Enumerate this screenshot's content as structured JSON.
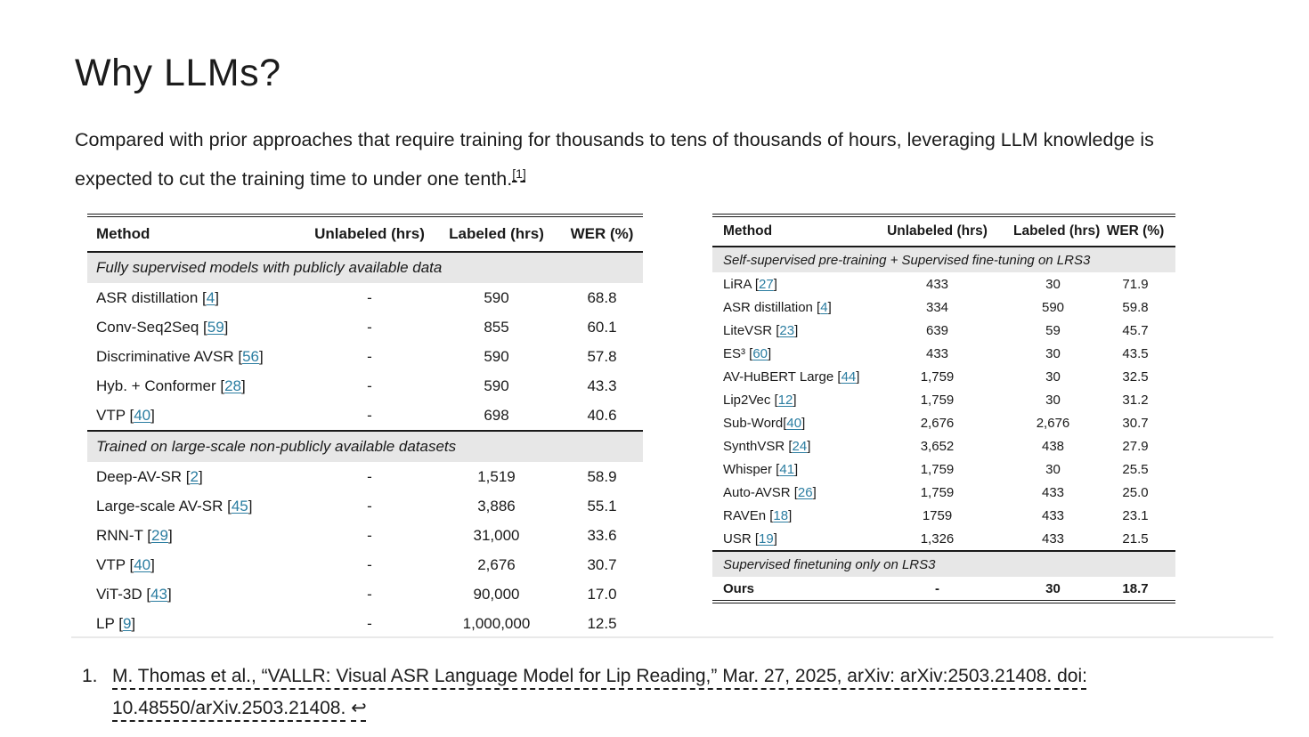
{
  "page": {
    "title": "Why LLMs?",
    "paragraph": "Compared with prior approaches that require training for thousands to tens of thousands of hours, leveraging LLM knowledge is expected to cut the training time to under one tenth.",
    "footnote_marker": "[1]"
  },
  "left_table": {
    "headers": [
      "Method",
      "Unlabeled (hrs)",
      "Labeled (hrs)",
      "WER (%)"
    ],
    "rows": [
      {
        "type": "section",
        "label": "Fully supervised models with publicly available data"
      },
      {
        "type": "data",
        "name": "ASR distillation",
        "ref": "4",
        "unlabeled": "-",
        "labeled": "590",
        "wer": "68.8"
      },
      {
        "type": "data",
        "name": "Conv-Seq2Seq",
        "ref": "59",
        "unlabeled": "-",
        "labeled": "855",
        "wer": "60.1"
      },
      {
        "type": "data",
        "name": "Discriminative AVSR",
        "ref": "56",
        "unlabeled": "-",
        "labeled": "590",
        "wer": "57.8"
      },
      {
        "type": "data",
        "name": "Hyb. + Conformer",
        "ref": "28",
        "unlabeled": "-",
        "labeled": "590",
        "wer": "43.3"
      },
      {
        "type": "data",
        "name": "VTP",
        "ref": "40",
        "unlabeled": "-",
        "labeled": "698",
        "wer": "40.6"
      },
      {
        "type": "section",
        "label": "Trained on large-scale non-publicly available datasets"
      },
      {
        "type": "data",
        "name": "Deep-AV-SR",
        "ref": "2",
        "unlabeled": "-",
        "labeled": "1,519",
        "wer": "58.9"
      },
      {
        "type": "data",
        "name": "Large-scale AV-SR",
        "ref": "45",
        "unlabeled": "-",
        "labeled": "3,886",
        "wer": "55.1"
      },
      {
        "type": "data",
        "name": "RNN-T",
        "ref": "29",
        "unlabeled": "-",
        "labeled": "31,000",
        "wer": "33.6"
      },
      {
        "type": "data",
        "name": "VTP",
        "ref": "40",
        "unlabeled": "-",
        "labeled": "2,676",
        "wer": "30.7"
      },
      {
        "type": "data",
        "name": "ViT-3D",
        "ref": "43",
        "unlabeled": "-",
        "labeled": "90,000",
        "wer": "17.0"
      },
      {
        "type": "data",
        "name": "LP",
        "ref": "9",
        "unlabeled": "-",
        "labeled": "1,000,000",
        "wer": "12.5"
      }
    ]
  },
  "right_table": {
    "headers": [
      "Method",
      "Unlabeled (hrs)",
      "Labeled (hrs)",
      "WER (%)"
    ],
    "rows": [
      {
        "type": "section",
        "label": "Self-supervised pre-training + Supervised fine-tuning on LRS3"
      },
      {
        "type": "data",
        "name": "LiRA",
        "ref": "27",
        "unlabeled": "433",
        "labeled": "30",
        "wer": "71.9"
      },
      {
        "type": "data",
        "name": "ASR distillation",
        "ref": "4",
        "unlabeled": "334",
        "labeled": "590",
        "wer": "59.8"
      },
      {
        "type": "data",
        "name": "LiteVSR",
        "ref": "23",
        "unlabeled": "639",
        "labeled": "59",
        "wer": "45.7"
      },
      {
        "type": "data",
        "name": "ES³",
        "ref": "60",
        "unlabeled": "433",
        "labeled": "30",
        "wer": "43.5"
      },
      {
        "type": "data",
        "name": "AV-HuBERT Large",
        "ref": "44",
        "unlabeled": "1,759",
        "labeled": "30",
        "wer": "32.5"
      },
      {
        "type": "data",
        "name": "Lip2Vec",
        "ref": "12",
        "unlabeled": "1,759",
        "labeled": "30",
        "wer": "31.2"
      },
      {
        "type": "data",
        "name": "Sub-Word",
        "ref": "40",
        "space": false,
        "unlabeled": "2,676",
        "labeled": "2,676",
        "wer": "30.7"
      },
      {
        "type": "data",
        "name": "SynthVSR",
        "ref": "24",
        "unlabeled": "3,652",
        "labeled": "438",
        "wer": "27.9"
      },
      {
        "type": "data",
        "name": "Whisper",
        "ref": "41",
        "unlabeled": "1,759",
        "labeled": "30",
        "wer": "25.5"
      },
      {
        "type": "data",
        "name": "Auto-AVSR",
        "ref": "26",
        "unlabeled": "1,759",
        "labeled": "433",
        "wer": "25.0"
      },
      {
        "type": "data",
        "name": "RAVEn",
        "ref": "18",
        "unlabeled": "1759",
        "labeled": "433",
        "wer": "23.1"
      },
      {
        "type": "data",
        "name": "USR",
        "ref": "19",
        "unlabeled": "1,326",
        "labeled": "433",
        "wer": "21.5"
      },
      {
        "type": "section",
        "label": "Supervised finetuning only on LRS3"
      },
      {
        "type": "data",
        "name": "Ours",
        "bold": true,
        "unlabeled": "-",
        "labeled": "30",
        "wer": "18.7"
      }
    ]
  },
  "footnote": {
    "number": "1.",
    "text": "M. Thomas et al., “VALLR: Visual ASR Language Model for Lip Reading,” Mar. 27, 2025, arXiv: arXiv:2503.21408. doi: 10.48550/arXiv.2503.21408.",
    "back_arrow": "↩"
  },
  "colors": {
    "link": "#2b7da1",
    "section_bg": "#e7e7e7",
    "text": "#1a1a1a",
    "faint_divider": "#e9e9e9"
  }
}
